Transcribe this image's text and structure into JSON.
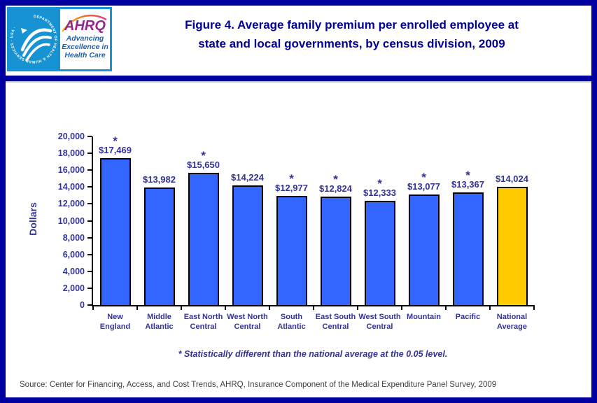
{
  "header": {
    "title_line1": "Figure 4. Average family premium per enrolled employee at",
    "title_line2": "state and local governments, by census division, 2009",
    "logo": {
      "hhs_circle_text": "DEPARTMENT OF HEALTH & HUMAN SERVICES · USA ·",
      "ahrq_acronym": "AHRQ",
      "tagline_lines": [
        "Advancing",
        "Excellence in",
        "Health Care"
      ]
    }
  },
  "chart_data": {
    "type": "bar",
    "title": "Average family premium per enrolled employee at state and local governments, by census division, 2009",
    "xlabel": "",
    "ylabel": "Dollars",
    "ylim": [
      0,
      20000
    ],
    "ytick_step": 2000,
    "grid": false,
    "legend": "none",
    "categories": [
      "New\nEngland",
      "Middle\nAtlantic",
      "East North\nCentral",
      "West North\nCentral",
      "South\nAtlantic",
      "East South\nCentral",
      "West South\nCentral",
      "Mountain",
      "Pacific",
      "National\nAverage"
    ],
    "values": [
      17469,
      13982,
      15650,
      14224,
      12977,
      12824,
      12333,
      13077,
      13367,
      14024
    ],
    "value_labels": [
      "$17,469",
      "$13,982",
      "$15,650",
      "$14,224",
      "$12,977",
      "$12,824",
      "$12,333",
      "$13,077",
      "$13,367",
      "$14,024"
    ],
    "starred": [
      true,
      false,
      true,
      false,
      true,
      true,
      true,
      true,
      true,
      false
    ],
    "star_symbol": "*",
    "bar_color": "#3366FF",
    "highlight_color": "#FFCC00",
    "highlight_index": 9
  },
  "footnote": "* Statistically different than the national average at the 0.05 level.",
  "source": "Source: Center for Financing, Access, and Cost Trends, AHRQ, Insurance Component of the Medical Expenditure Panel Survey, 2009",
  "colors": {
    "page_border": "#0000A0",
    "header_rule": "#0000A0",
    "title_text": "#000099",
    "chart_text": "#333399",
    "axis": "#000000",
    "bar_blue": "#3366FF",
    "bar_gold": "#FFCC00",
    "source_text": "#404040",
    "logo_blue": "#1793D3",
    "ahrq_purple": "#93278F",
    "tagline_blue": "#1B62B5"
  }
}
